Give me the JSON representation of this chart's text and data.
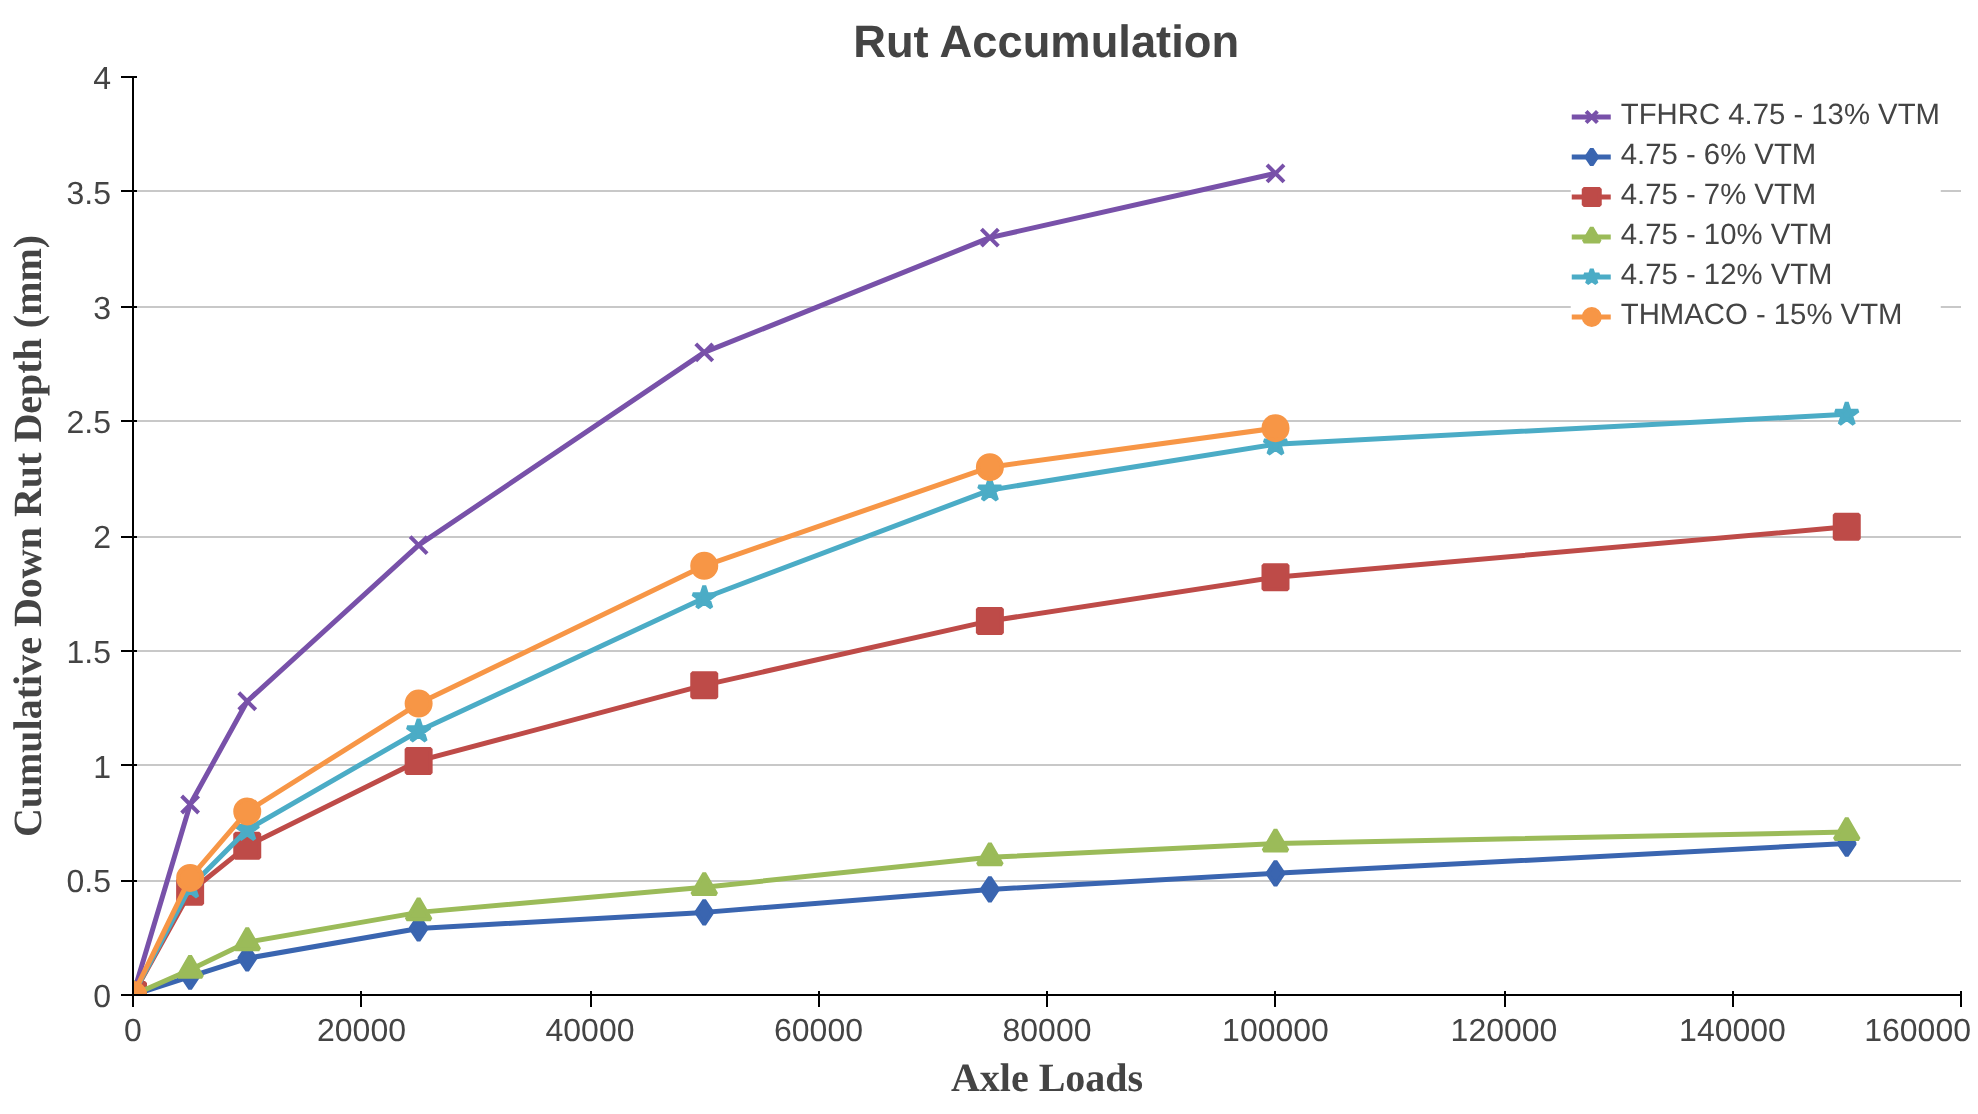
{
  "chart_data": {
    "type": "line",
    "title": "Rut Accumulation",
    "xlabel": "Axle Loads",
    "ylabel": "Cumulative Down Rut Depth (mm)",
    "xlim": [
      0,
      160000
    ],
    "xticks": [
      0,
      20000,
      40000,
      60000,
      80000,
      100000,
      120000,
      140000,
      160000
    ],
    "ylim": [
      0,
      4
    ],
    "yticks": [
      0,
      0.5,
      1,
      1.5,
      2,
      2.5,
      3,
      3.5,
      4
    ],
    "grid": "y",
    "legend": "top right",
    "line_style": "solid",
    "series": [
      {
        "name": "TFHRC 4.75 - 13% VTM",
        "color": "#7851a9",
        "marker": "cross",
        "x": [
          0,
          5000,
          10000,
          25000,
          50000,
          75000,
          100000
        ],
        "values": [
          0,
          0.83,
          1.28,
          1.96,
          2.8,
          3.3,
          3.58
        ]
      },
      {
        "name": "4.75 - 6% VTM",
        "color": "#3a65b0",
        "marker": "diamond",
        "x": [
          0,
          5000,
          10000,
          25000,
          50000,
          75000,
          100000,
          150000
        ],
        "values": [
          0,
          0.08,
          0.16,
          0.29,
          0.36,
          0.46,
          0.53,
          0.66
        ]
      },
      {
        "name": "4.75 - 7% VTM",
        "color": "#be4b48",
        "marker": "square",
        "x": [
          0,
          5000,
          10000,
          25000,
          50000,
          75000,
          100000,
          150000
        ],
        "values": [
          0,
          0.45,
          0.65,
          1.02,
          1.35,
          1.63,
          1.82,
          2.04
        ]
      },
      {
        "name": "4.75 - 10% VTM",
        "color": "#9bbb59",
        "marker": "triangle",
        "x": [
          0,
          5000,
          10000,
          25000,
          50000,
          75000,
          100000,
          150000
        ],
        "values": [
          0,
          0.11,
          0.23,
          0.36,
          0.47,
          0.6,
          0.66,
          0.71
        ]
      },
      {
        "name": "4.75 - 12% VTM",
        "color": "#4bacc6",
        "marker": "star",
        "x": [
          0,
          5000,
          10000,
          25000,
          50000,
          75000,
          100000,
          150000
        ],
        "values": [
          0,
          0.47,
          0.72,
          1.15,
          1.73,
          2.2,
          2.4,
          2.53
        ]
      },
      {
        "name": "THMACO - 15% VTM",
        "color": "#f79646",
        "marker": "circle",
        "x": [
          0,
          5000,
          10000,
          25000,
          50000,
          75000,
          100000
        ],
        "values": [
          0,
          0.51,
          0.8,
          1.27,
          1.87,
          2.3,
          2.47
        ]
      }
    ]
  }
}
